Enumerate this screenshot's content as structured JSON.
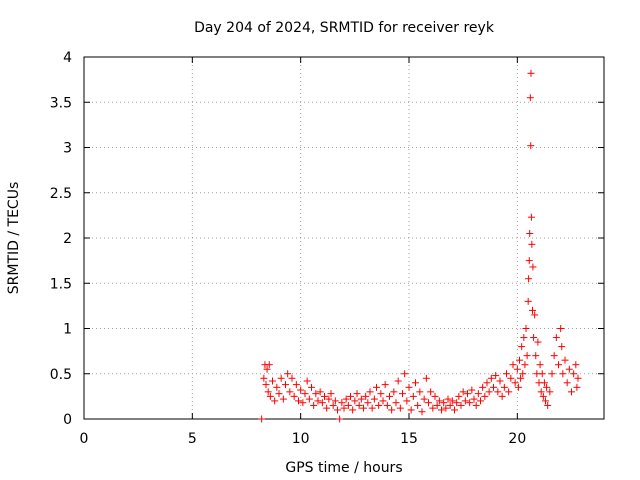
{
  "chart_data": {
    "type": "scatter",
    "title": "Day 204 of 2024, SRMTID for receiver reyk",
    "xlabel": "GPS time / hours",
    "ylabel": "SRMTID / TECUs",
    "xlim": [
      0,
      24
    ],
    "ylim": [
      0,
      4
    ],
    "xticks": [
      0,
      5,
      10,
      15,
      20
    ],
    "yticks": [
      0,
      0.5,
      1,
      1.5,
      2,
      2.5,
      3,
      3.5,
      4
    ],
    "grid": true,
    "marker": "plus",
    "color": "#ff0000",
    "series": [
      {
        "name": "SRMTID",
        "points": [
          [
            8.2,
            0.0
          ],
          [
            11.8,
            0.0
          ],
          [
            8.3,
            0.45
          ],
          [
            8.35,
            0.6
          ],
          [
            8.4,
            0.38
          ],
          [
            8.45,
            0.55
          ],
          [
            8.5,
            0.3
          ],
          [
            8.55,
            0.6
          ],
          [
            8.6,
            0.25
          ],
          [
            8.7,
            0.42
          ],
          [
            8.8,
            0.2
          ],
          [
            8.9,
            0.35
          ],
          [
            9.0,
            0.28
          ],
          [
            9.1,
            0.45
          ],
          [
            9.2,
            0.22
          ],
          [
            9.3,
            0.38
          ],
          [
            9.4,
            0.5
          ],
          [
            9.5,
            0.3
          ],
          [
            9.6,
            0.45
          ],
          [
            9.7,
            0.25
          ],
          [
            9.8,
            0.38
          ],
          [
            9.9,
            0.2
          ],
          [
            10.0,
            0.32
          ],
          [
            10.1,
            0.18
          ],
          [
            10.2,
            0.28
          ],
          [
            10.3,
            0.42
          ],
          [
            10.4,
            0.22
          ],
          [
            10.5,
            0.35
          ],
          [
            10.6,
            0.15
          ],
          [
            10.7,
            0.28
          ],
          [
            10.8,
            0.2
          ],
          [
            10.9,
            0.3
          ],
          [
            11.0,
            0.18
          ],
          [
            11.1,
            0.25
          ],
          [
            11.2,
            0.12
          ],
          [
            11.3,
            0.22
          ],
          [
            11.4,
            0.28
          ],
          [
            11.5,
            0.15
          ],
          [
            11.6,
            0.2
          ],
          [
            11.7,
            0.1
          ],
          [
            11.9,
            0.18
          ],
          [
            12.0,
            0.12
          ],
          [
            12.1,
            0.22
          ],
          [
            12.2,
            0.15
          ],
          [
            12.3,
            0.25
          ],
          [
            12.4,
            0.1
          ],
          [
            12.5,
            0.2
          ],
          [
            12.6,
            0.28
          ],
          [
            12.7,
            0.15
          ],
          [
            12.8,
            0.22
          ],
          [
            12.9,
            0.12
          ],
          [
            13.0,
            0.25
          ],
          [
            13.1,
            0.18
          ],
          [
            13.2,
            0.3
          ],
          [
            13.3,
            0.12
          ],
          [
            13.4,
            0.22
          ],
          [
            13.5,
            0.35
          ],
          [
            13.6,
            0.15
          ],
          [
            13.7,
            0.28
          ],
          [
            13.8,
            0.2
          ],
          [
            13.9,
            0.38
          ],
          [
            14.0,
            0.15
          ],
          [
            14.1,
            0.25
          ],
          [
            14.2,
            0.1
          ],
          [
            14.3,
            0.3
          ],
          [
            14.4,
            0.18
          ],
          [
            14.5,
            0.42
          ],
          [
            14.6,
            0.12
          ],
          [
            14.7,
            0.28
          ],
          [
            14.8,
            0.5
          ],
          [
            14.9,
            0.2
          ],
          [
            15.0,
            0.35
          ],
          [
            15.1,
            0.1
          ],
          [
            15.2,
            0.25
          ],
          [
            15.3,
            0.4
          ],
          [
            15.4,
            0.15
          ],
          [
            15.5,
            0.3
          ],
          [
            15.6,
            0.08
          ],
          [
            15.7,
            0.22
          ],
          [
            15.8,
            0.45
          ],
          [
            15.9,
            0.18
          ],
          [
            16.0,
            0.3
          ],
          [
            16.1,
            0.12
          ],
          [
            16.2,
            0.25
          ],
          [
            16.3,
            0.15
          ],
          [
            16.4,
            0.2
          ],
          [
            16.5,
            0.1
          ],
          [
            16.6,
            0.18
          ],
          [
            16.7,
            0.12
          ],
          [
            16.8,
            0.22
          ],
          [
            16.9,
            0.15
          ],
          [
            17.0,
            0.2
          ],
          [
            17.1,
            0.1
          ],
          [
            17.2,
            0.18
          ],
          [
            17.3,
            0.25
          ],
          [
            17.4,
            0.15
          ],
          [
            17.5,
            0.3
          ],
          [
            17.6,
            0.2
          ],
          [
            17.7,
            0.28
          ],
          [
            17.8,
            0.18
          ],
          [
            17.9,
            0.32
          ],
          [
            18.0,
            0.22
          ],
          [
            18.1,
            0.15
          ],
          [
            18.2,
            0.28
          ],
          [
            18.3,
            0.2
          ],
          [
            18.4,
            0.35
          ],
          [
            18.5,
            0.25
          ],
          [
            18.6,
            0.4
          ],
          [
            18.7,
            0.3
          ],
          [
            18.8,
            0.45
          ],
          [
            18.9,
            0.35
          ],
          [
            19.0,
            0.48
          ],
          [
            19.1,
            0.3
          ],
          [
            19.2,
            0.42
          ],
          [
            19.3,
            0.25
          ],
          [
            19.4,
            0.35
          ],
          [
            19.5,
            0.5
          ],
          [
            19.6,
            0.3
          ],
          [
            19.7,
            0.45
          ],
          [
            19.8,
            0.6
          ],
          [
            19.9,
            0.4
          ],
          [
            20.0,
            0.55
          ],
          [
            20.05,
            0.35
          ],
          [
            20.1,
            0.65
          ],
          [
            20.15,
            0.45
          ],
          [
            20.2,
            0.8
          ],
          [
            20.25,
            0.5
          ],
          [
            20.3,
            0.9
          ],
          [
            20.35,
            0.6
          ],
          [
            20.4,
            1.0
          ],
          [
            20.45,
            0.7
          ],
          [
            20.5,
            1.3
          ],
          [
            20.52,
            1.55
          ],
          [
            20.55,
            1.75
          ],
          [
            20.57,
            2.05
          ],
          [
            20.6,
            3.55
          ],
          [
            20.62,
            3.02
          ],
          [
            20.63,
            3.82
          ],
          [
            20.65,
            2.23
          ],
          [
            20.67,
            1.93
          ],
          [
            20.7,
            1.2
          ],
          [
            20.72,
            1.68
          ],
          [
            20.75,
            0.9
          ],
          [
            20.8,
            1.15
          ],
          [
            20.85,
            0.7
          ],
          [
            20.9,
            0.5
          ],
          [
            20.95,
            0.85
          ],
          [
            21.0,
            0.4
          ],
          [
            21.05,
            0.6
          ],
          [
            21.1,
            0.3
          ],
          [
            21.15,
            0.5
          ],
          [
            21.2,
            0.25
          ],
          [
            21.25,
            0.4
          ],
          [
            21.3,
            0.2
          ],
          [
            21.35,
            0.35
          ],
          [
            21.4,
            0.15
          ],
          [
            21.5,
            0.3
          ],
          [
            21.6,
            0.5
          ],
          [
            21.7,
            0.7
          ],
          [
            21.8,
            0.9
          ],
          [
            21.9,
            0.6
          ],
          [
            22.0,
            1.0
          ],
          [
            22.05,
            0.8
          ],
          [
            22.1,
            0.5
          ],
          [
            22.2,
            0.65
          ],
          [
            22.3,
            0.4
          ],
          [
            22.4,
            0.55
          ],
          [
            22.5,
            0.3
          ],
          [
            22.6,
            0.5
          ],
          [
            22.7,
            0.6
          ],
          [
            22.75,
            0.35
          ],
          [
            22.8,
            0.45
          ]
        ]
      }
    ]
  }
}
